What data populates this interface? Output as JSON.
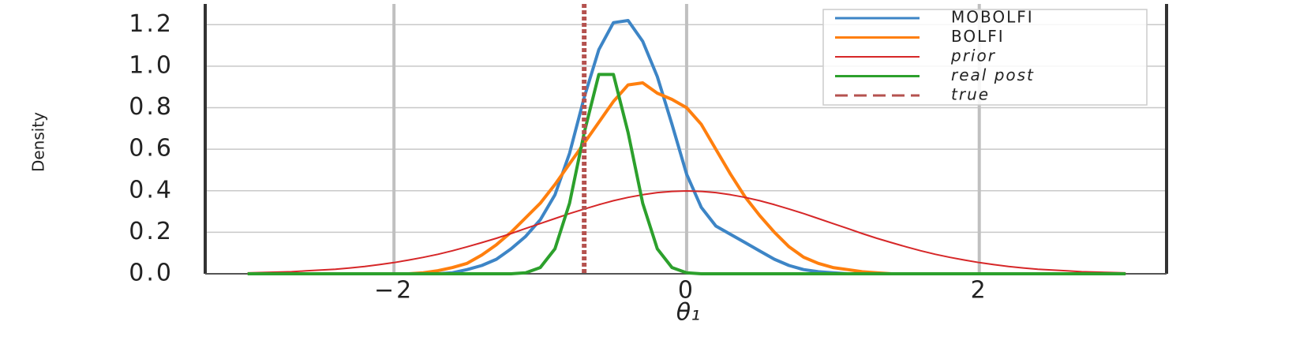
{
  "chart_data": {
    "type": "line",
    "xlabel": "θ₁",
    "ylabel": "Density",
    "x": [
      -3.0,
      -2.9,
      -2.8,
      -2.7,
      -2.6,
      -2.5,
      -2.4,
      -2.3,
      -2.2,
      -2.1,
      -2.0,
      -1.9,
      -1.8,
      -1.7,
      -1.6,
      -1.5,
      -1.4,
      -1.3,
      -1.2,
      -1.1,
      -1.0,
      -0.9,
      -0.8,
      -0.7,
      -0.6,
      -0.5,
      -0.4,
      -0.3,
      -0.2,
      -0.1,
      0.0,
      0.1,
      0.2,
      0.3,
      0.4,
      0.5,
      0.6,
      0.7,
      0.8,
      0.9,
      1.0,
      1.1,
      1.2,
      1.3,
      1.4,
      1.5,
      1.6,
      1.7,
      1.8,
      1.9,
      2.0,
      2.1,
      2.2,
      2.3,
      2.4,
      2.5,
      2.6,
      2.7,
      2.8,
      2.9,
      3.0
    ],
    "series": [
      {
        "name": "MOBOLFI",
        "color": "#3d85c6",
        "style": "normal",
        "width": 4,
        "values": [
          0,
          0,
          0,
          0,
          0,
          0,
          0,
          0,
          0,
          0,
          0,
          0,
          0,
          0,
          0.005,
          0.02,
          0.04,
          0.07,
          0.12,
          0.18,
          0.26,
          0.38,
          0.58,
          0.85,
          1.08,
          1.21,
          1.22,
          1.12,
          0.95,
          0.72,
          0.48,
          0.32,
          0.23,
          0.19,
          0.15,
          0.11,
          0.07,
          0.04,
          0.02,
          0.01,
          0.005,
          0,
          0,
          0,
          0,
          0,
          0,
          0,
          0,
          0,
          0,
          0,
          0,
          0,
          0,
          0,
          0,
          0,
          0,
          0,
          0
        ]
      },
      {
        "name": "BOLFI",
        "color": "#ff7f0e",
        "style": "normal",
        "width": 4,
        "values": [
          0,
          0,
          0,
          0,
          0,
          0,
          0,
          0,
          0,
          0,
          0,
          0,
          0.005,
          0.015,
          0.03,
          0.05,
          0.09,
          0.14,
          0.2,
          0.27,
          0.34,
          0.43,
          0.53,
          0.63,
          0.73,
          0.83,
          0.91,
          0.92,
          0.87,
          0.84,
          0.8,
          0.72,
          0.6,
          0.48,
          0.37,
          0.28,
          0.2,
          0.13,
          0.08,
          0.05,
          0.03,
          0.02,
          0.01,
          0.005,
          0,
          0,
          0,
          0,
          0,
          0,
          0,
          0,
          0,
          0,
          0,
          0,
          0,
          0,
          0,
          0,
          0
        ]
      },
      {
        "name": "prior",
        "color": "#d62728",
        "style": "italic",
        "width": 2,
        "values": [
          0.004,
          0.006,
          0.008,
          0.01,
          0.014,
          0.018,
          0.022,
          0.028,
          0.035,
          0.044,
          0.054,
          0.066,
          0.079,
          0.094,
          0.111,
          0.13,
          0.15,
          0.171,
          0.194,
          0.218,
          0.242,
          0.266,
          0.29,
          0.312,
          0.333,
          0.352,
          0.368,
          0.381,
          0.391,
          0.397,
          0.399,
          0.397,
          0.391,
          0.381,
          0.368,
          0.352,
          0.333,
          0.312,
          0.29,
          0.266,
          0.242,
          0.218,
          0.194,
          0.171,
          0.15,
          0.13,
          0.111,
          0.094,
          0.079,
          0.066,
          0.054,
          0.044,
          0.035,
          0.028,
          0.022,
          0.018,
          0.014,
          0.01,
          0.008,
          0.006,
          0.004
        ]
      },
      {
        "name": "real post",
        "color": "#2ca02c",
        "style": "italic",
        "width": 4,
        "values": [
          0,
          0,
          0,
          0,
          0,
          0,
          0,
          0,
          0,
          0,
          0,
          0,
          0,
          0,
          0,
          0,
          0,
          0,
          0,
          0.005,
          0.03,
          0.12,
          0.34,
          0.68,
          0.96,
          0.96,
          0.68,
          0.34,
          0.12,
          0.03,
          0.005,
          0,
          0,
          0,
          0,
          0,
          0,
          0,
          0,
          0,
          0,
          0,
          0,
          0,
          0,
          0,
          0,
          0,
          0,
          0,
          0,
          0,
          0,
          0,
          0,
          0,
          0,
          0,
          0,
          0,
          0
        ]
      }
    ],
    "vlines": [
      {
        "name": "true",
        "x": -0.7,
        "color": "#b5524f",
        "style": "italic"
      }
    ],
    "xlim": [
      -3.29,
      3.28
    ],
    "ylim": [
      0,
      1.3
    ],
    "xticks": [
      {
        "value": -2,
        "label": "−2"
      },
      0,
      2
    ],
    "yticks": [
      {
        "value": 0,
        "label": "0.0"
      },
      0.2,
      0.4,
      0.6,
      0.8,
      {
        "value": 1,
        "label": "1.0"
      },
      1.2
    ],
    "grid": true,
    "legend": "upper right"
  }
}
